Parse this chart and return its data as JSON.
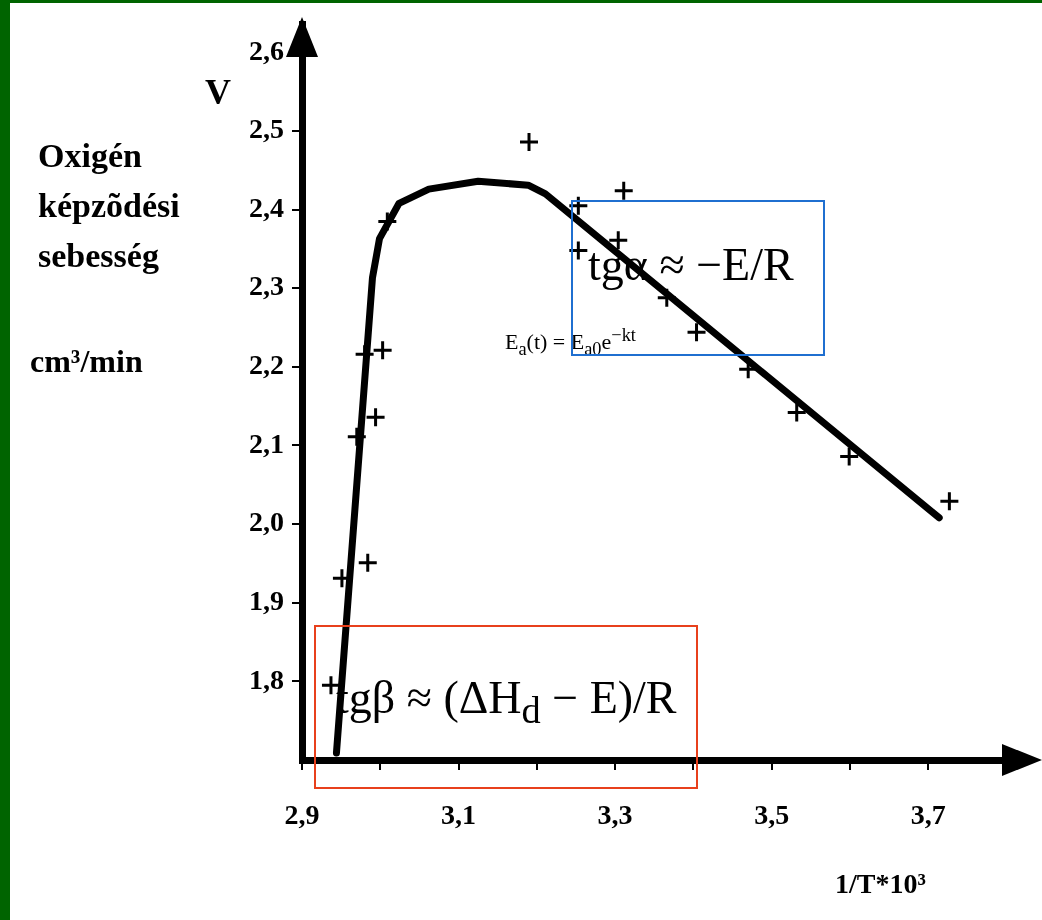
{
  "chart_data": {
    "type": "scatter",
    "xlabel": "1/T*10³",
    "ylabel": "Oxigén képzõdési sebesség\ncm³/min",
    "annotations": [
      "V",
      "tgα ≈ −E/R",
      "E$_{a}$(t) = E$_{a0}$e$^{−kt}$",
      "tgβ ≈ (ΔH$_{d}$ − E)/R"
    ],
    "xlim": [
      2.9,
      3.83
    ],
    "ylim": [
      1.7,
      2.635
    ],
    "xticks": [
      {
        "value": 2.9,
        "label": "2,9"
      },
      {
        "value": 3.0,
        "label": null
      },
      {
        "value": 3.1,
        "label": "3,1"
      },
      {
        "value": 3.2,
        "label": null
      },
      {
        "value": 3.3,
        "label": "3,3"
      },
      {
        "value": 3.4,
        "label": null
      },
      {
        "value": 3.5,
        "label": "3,5"
      },
      {
        "value": 3.6,
        "label": null
      },
      {
        "value": 3.7,
        "label": "3,7"
      }
    ],
    "yticks": [
      {
        "value": 1.8,
        "label": "1,8"
      },
      {
        "value": 1.9,
        "label": "1,9"
      },
      {
        "value": 2.0,
        "label": "2,0"
      },
      {
        "value": 2.1,
        "label": "2,1"
      },
      {
        "value": 2.2,
        "label": "2,2"
      },
      {
        "value": 2.3,
        "label": "2,3"
      },
      {
        "value": 2.4,
        "label": "2,4"
      },
      {
        "value": 2.5,
        "label": "2,5"
      },
      {
        "value": 2.6,
        "label": "2,6"
      }
    ],
    "series": [
      {
        "type": "scatter",
        "color": "#000000",
        "marker": "cross",
        "x": [
          2.937,
          2.951,
          2.984,
          2.97,
          2.98,
          3.003,
          2.994,
          3.009,
          3.19,
          3.253,
          3.253,
          3.311,
          3.304,
          3.366,
          3.404,
          3.47,
          3.532,
          3.599,
          3.727
        ],
        "values": [
          1.795,
          1.931,
          1.951,
          2.111,
          2.216,
          2.221,
          2.136,
          2.385,
          2.486,
          2.405,
          2.348,
          2.424,
          2.361,
          2.288,
          2.244,
          2.197,
          2.142,
          2.086,
          2.029
        ]
      },
      {
        "type": "line",
        "color": "#000000",
        "marker": "none",
        "x": [
          2.944,
          2.99,
          2.999,
          3.024,
          3.062,
          3.125,
          3.189,
          3.211,
          3.714
        ],
        "values": [
          1.709,
          2.313,
          2.363,
          2.408,
          2.426,
          2.436,
          2.431,
          2.42,
          2.008
        ]
      }
    ]
  }
}
